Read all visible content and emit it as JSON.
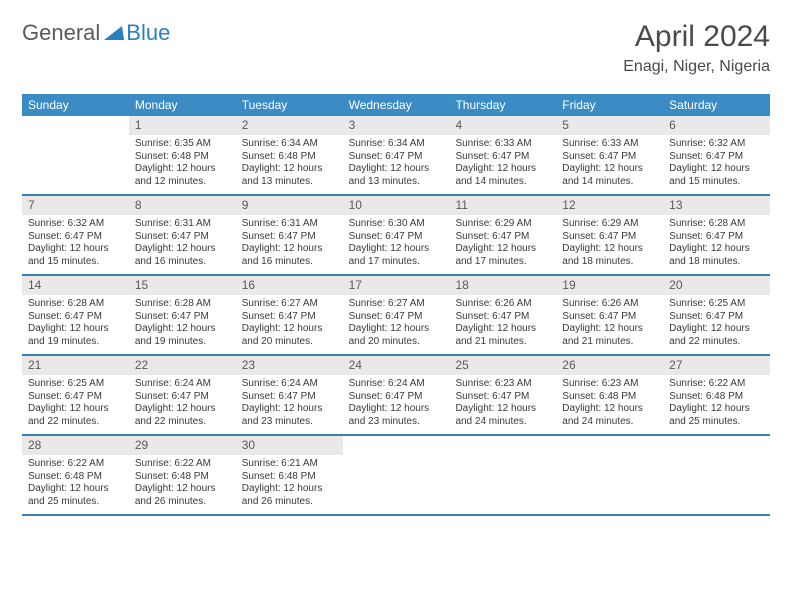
{
  "brand": {
    "part1": "General",
    "part2": "Blue"
  },
  "title": "April 2024",
  "location": "Enagi, Niger, Nigeria",
  "colors": {
    "header_bg": "#3b8bc4",
    "header_text": "#ffffff",
    "week_divider": "#3b7fb3",
    "daynum_bg": "#e9e9e9",
    "daynum_text": "#5a5a5a",
    "body_text": "#3a3a3a",
    "title_text": "#4a4a4a",
    "logo_gray": "#5a5a5a",
    "logo_blue": "#2a7fbf"
  },
  "dayNames": [
    "Sunday",
    "Monday",
    "Tuesday",
    "Wednesday",
    "Thursday",
    "Friday",
    "Saturday"
  ],
  "weeks": [
    [
      {
        "n": "",
        "sr": "",
        "ss": "",
        "dl": ""
      },
      {
        "n": "1",
        "sr": "Sunrise: 6:35 AM",
        "ss": "Sunset: 6:48 PM",
        "dl": "Daylight: 12 hours and 12 minutes."
      },
      {
        "n": "2",
        "sr": "Sunrise: 6:34 AM",
        "ss": "Sunset: 6:48 PM",
        "dl": "Daylight: 12 hours and 13 minutes."
      },
      {
        "n": "3",
        "sr": "Sunrise: 6:34 AM",
        "ss": "Sunset: 6:47 PM",
        "dl": "Daylight: 12 hours and 13 minutes."
      },
      {
        "n": "4",
        "sr": "Sunrise: 6:33 AM",
        "ss": "Sunset: 6:47 PM",
        "dl": "Daylight: 12 hours and 14 minutes."
      },
      {
        "n": "5",
        "sr": "Sunrise: 6:33 AM",
        "ss": "Sunset: 6:47 PM",
        "dl": "Daylight: 12 hours and 14 minutes."
      },
      {
        "n": "6",
        "sr": "Sunrise: 6:32 AM",
        "ss": "Sunset: 6:47 PM",
        "dl": "Daylight: 12 hours and 15 minutes."
      }
    ],
    [
      {
        "n": "7",
        "sr": "Sunrise: 6:32 AM",
        "ss": "Sunset: 6:47 PM",
        "dl": "Daylight: 12 hours and 15 minutes."
      },
      {
        "n": "8",
        "sr": "Sunrise: 6:31 AM",
        "ss": "Sunset: 6:47 PM",
        "dl": "Daylight: 12 hours and 16 minutes."
      },
      {
        "n": "9",
        "sr": "Sunrise: 6:31 AM",
        "ss": "Sunset: 6:47 PM",
        "dl": "Daylight: 12 hours and 16 minutes."
      },
      {
        "n": "10",
        "sr": "Sunrise: 6:30 AM",
        "ss": "Sunset: 6:47 PM",
        "dl": "Daylight: 12 hours and 17 minutes."
      },
      {
        "n": "11",
        "sr": "Sunrise: 6:29 AM",
        "ss": "Sunset: 6:47 PM",
        "dl": "Daylight: 12 hours and 17 minutes."
      },
      {
        "n": "12",
        "sr": "Sunrise: 6:29 AM",
        "ss": "Sunset: 6:47 PM",
        "dl": "Daylight: 12 hours and 18 minutes."
      },
      {
        "n": "13",
        "sr": "Sunrise: 6:28 AM",
        "ss": "Sunset: 6:47 PM",
        "dl": "Daylight: 12 hours and 18 minutes."
      }
    ],
    [
      {
        "n": "14",
        "sr": "Sunrise: 6:28 AM",
        "ss": "Sunset: 6:47 PM",
        "dl": "Daylight: 12 hours and 19 minutes."
      },
      {
        "n": "15",
        "sr": "Sunrise: 6:28 AM",
        "ss": "Sunset: 6:47 PM",
        "dl": "Daylight: 12 hours and 19 minutes."
      },
      {
        "n": "16",
        "sr": "Sunrise: 6:27 AM",
        "ss": "Sunset: 6:47 PM",
        "dl": "Daylight: 12 hours and 20 minutes."
      },
      {
        "n": "17",
        "sr": "Sunrise: 6:27 AM",
        "ss": "Sunset: 6:47 PM",
        "dl": "Daylight: 12 hours and 20 minutes."
      },
      {
        "n": "18",
        "sr": "Sunrise: 6:26 AM",
        "ss": "Sunset: 6:47 PM",
        "dl": "Daylight: 12 hours and 21 minutes."
      },
      {
        "n": "19",
        "sr": "Sunrise: 6:26 AM",
        "ss": "Sunset: 6:47 PM",
        "dl": "Daylight: 12 hours and 21 minutes."
      },
      {
        "n": "20",
        "sr": "Sunrise: 6:25 AM",
        "ss": "Sunset: 6:47 PM",
        "dl": "Daylight: 12 hours and 22 minutes."
      }
    ],
    [
      {
        "n": "21",
        "sr": "Sunrise: 6:25 AM",
        "ss": "Sunset: 6:47 PM",
        "dl": "Daylight: 12 hours and 22 minutes."
      },
      {
        "n": "22",
        "sr": "Sunrise: 6:24 AM",
        "ss": "Sunset: 6:47 PM",
        "dl": "Daylight: 12 hours and 22 minutes."
      },
      {
        "n": "23",
        "sr": "Sunrise: 6:24 AM",
        "ss": "Sunset: 6:47 PM",
        "dl": "Daylight: 12 hours and 23 minutes."
      },
      {
        "n": "24",
        "sr": "Sunrise: 6:24 AM",
        "ss": "Sunset: 6:47 PM",
        "dl": "Daylight: 12 hours and 23 minutes."
      },
      {
        "n": "25",
        "sr": "Sunrise: 6:23 AM",
        "ss": "Sunset: 6:47 PM",
        "dl": "Daylight: 12 hours and 24 minutes."
      },
      {
        "n": "26",
        "sr": "Sunrise: 6:23 AM",
        "ss": "Sunset: 6:48 PM",
        "dl": "Daylight: 12 hours and 24 minutes."
      },
      {
        "n": "27",
        "sr": "Sunrise: 6:22 AM",
        "ss": "Sunset: 6:48 PM",
        "dl": "Daylight: 12 hours and 25 minutes."
      }
    ],
    [
      {
        "n": "28",
        "sr": "Sunrise: 6:22 AM",
        "ss": "Sunset: 6:48 PM",
        "dl": "Daylight: 12 hours and 25 minutes."
      },
      {
        "n": "29",
        "sr": "Sunrise: 6:22 AM",
        "ss": "Sunset: 6:48 PM",
        "dl": "Daylight: 12 hours and 26 minutes."
      },
      {
        "n": "30",
        "sr": "Sunrise: 6:21 AM",
        "ss": "Sunset: 6:48 PM",
        "dl": "Daylight: 12 hours and 26 minutes."
      },
      {
        "n": "",
        "sr": "",
        "ss": "",
        "dl": ""
      },
      {
        "n": "",
        "sr": "",
        "ss": "",
        "dl": ""
      },
      {
        "n": "",
        "sr": "",
        "ss": "",
        "dl": ""
      },
      {
        "n": "",
        "sr": "",
        "ss": "",
        "dl": ""
      }
    ]
  ]
}
